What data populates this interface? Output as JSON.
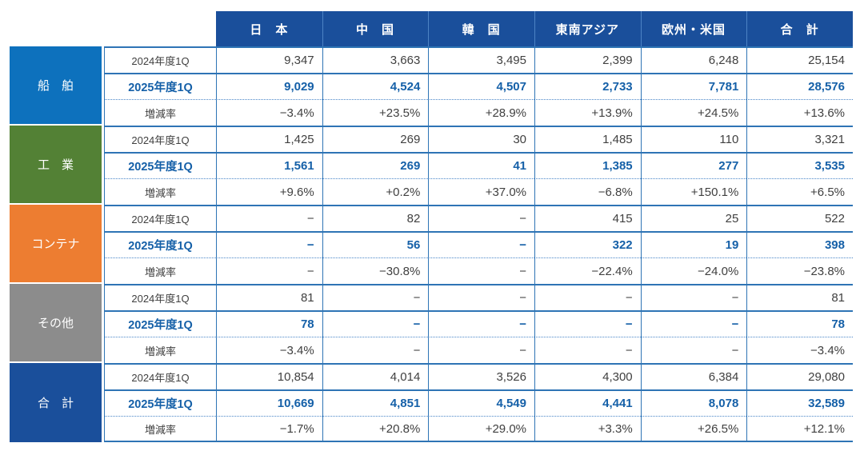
{
  "table": {
    "columns": [
      "日　本",
      "中　国",
      "韓　国",
      "東南アジア",
      "欧州・米国",
      "合　計"
    ],
    "row_labels": [
      "2024年度1Q",
      "2025年度1Q",
      "増減率"
    ],
    "groups": [
      {
        "id": "ship",
        "name": "船　舶",
        "color": "#0D71BD",
        "rows": [
          [
            "9,347",
            "3,663",
            "3,495",
            "2,399",
            "6,248",
            "25,154"
          ],
          [
            "9,029",
            "4,524",
            "4,507",
            "2,733",
            "7,781",
            "28,576"
          ],
          [
            "−3.4%",
            "+23.5%",
            "+28.9%",
            "+13.9%",
            "+24.5%",
            "+13.6%"
          ]
        ]
      },
      {
        "id": "industrial",
        "name": "工　業",
        "color": "#538135",
        "rows": [
          [
            "1,425",
            "269",
            "30",
            "1,485",
            "110",
            "3,321"
          ],
          [
            "1,561",
            "269",
            "41",
            "1,385",
            "277",
            "3,535"
          ],
          [
            "+9.6%",
            "+0.2%",
            "+37.0%",
            "−6.8%",
            "+150.1%",
            "+6.5%"
          ]
        ]
      },
      {
        "id": "container",
        "name": "コンテナ",
        "color": "#ED7D31",
        "rows": [
          [
            "−",
            "82",
            "−",
            "415",
            "25",
            "522"
          ],
          [
            "−",
            "56",
            "−",
            "322",
            "19",
            "398"
          ],
          [
            "−",
            "−30.8%",
            "−",
            "−22.4%",
            "−24.0%",
            "−23.8%"
          ]
        ]
      },
      {
        "id": "others",
        "name": "その他",
        "color": "#8C8C8C",
        "rows": [
          [
            "81",
            "−",
            "−",
            "−",
            "−",
            "81"
          ],
          [
            "78",
            "−",
            "−",
            "−",
            "−",
            "78"
          ],
          [
            "−3.4%",
            "−",
            "−",
            "−",
            "−",
            "−3.4%"
          ]
        ]
      },
      {
        "id": "total",
        "name": "合　計",
        "color": "#1A4F9B",
        "rows": [
          [
            "10,854",
            "4,014",
            "3,526",
            "4,300",
            "6,384",
            "29,080"
          ],
          [
            "10,669",
            "4,851",
            "4,549",
            "4,441",
            "8,078",
            "32,589"
          ],
          [
            "−1.7%",
            "+20.8%",
            "+29.0%",
            "+3.3%",
            "+26.5%",
            "+12.1%"
          ]
        ]
      }
    ],
    "colors": {
      "header_navy": "#1A4F9B",
      "border_blue": "#2E74B5",
      "bold_value_blue": "#1560A8",
      "body_text": "#404040"
    }
  },
  "chart_data": {
    "type": "table",
    "title": "",
    "columns": [
      "日本",
      "中国",
      "韓国",
      "東南アジア",
      "欧州・米国",
      "合計"
    ],
    "row_groups": [
      "船舶",
      "工業",
      "コンテナ",
      "その他",
      "合計"
    ],
    "series": [
      {
        "group": "船舶",
        "name": "2024年度1Q",
        "values": [
          9347,
          3663,
          3495,
          2399,
          6248,
          25154
        ]
      },
      {
        "group": "船舶",
        "name": "2025年度1Q",
        "values": [
          9029,
          4524,
          4507,
          2733,
          7781,
          28576
        ]
      },
      {
        "group": "船舶",
        "name": "増減率(%)",
        "values": [
          -3.4,
          23.5,
          28.9,
          13.9,
          24.5,
          13.6
        ]
      },
      {
        "group": "工業",
        "name": "2024年度1Q",
        "values": [
          1425,
          269,
          30,
          1485,
          110,
          3321
        ]
      },
      {
        "group": "工業",
        "name": "2025年度1Q",
        "values": [
          1561,
          269,
          41,
          1385,
          277,
          3535
        ]
      },
      {
        "group": "工業",
        "name": "増減率(%)",
        "values": [
          9.6,
          0.2,
          37.0,
          -6.8,
          150.1,
          6.5
        ]
      },
      {
        "group": "コンテナ",
        "name": "2024年度1Q",
        "values": [
          null,
          82,
          null,
          415,
          25,
          522
        ]
      },
      {
        "group": "コンテナ",
        "name": "2025年度1Q",
        "values": [
          null,
          56,
          null,
          322,
          19,
          398
        ]
      },
      {
        "group": "コンテナ",
        "name": "増減率(%)",
        "values": [
          null,
          -30.8,
          null,
          -22.4,
          -24.0,
          -23.8
        ]
      },
      {
        "group": "その他",
        "name": "2024年度1Q",
        "values": [
          81,
          null,
          null,
          null,
          null,
          81
        ]
      },
      {
        "group": "その他",
        "name": "2025年度1Q",
        "values": [
          78,
          null,
          null,
          null,
          null,
          78
        ]
      },
      {
        "group": "その他",
        "name": "増減率(%)",
        "values": [
          -3.4,
          null,
          null,
          null,
          null,
          -3.4
        ]
      },
      {
        "group": "合計",
        "name": "2024年度1Q",
        "values": [
          10854,
          4014,
          3526,
          4300,
          6384,
          29080
        ]
      },
      {
        "group": "合計",
        "name": "2025年度1Q",
        "values": [
          10669,
          4851,
          4549,
          4441,
          8078,
          32589
        ]
      },
      {
        "group": "合計",
        "name": "増減率(%)",
        "values": [
          -1.7,
          20.8,
          29.0,
          3.3,
          26.5,
          12.1
        ]
      }
    ]
  }
}
